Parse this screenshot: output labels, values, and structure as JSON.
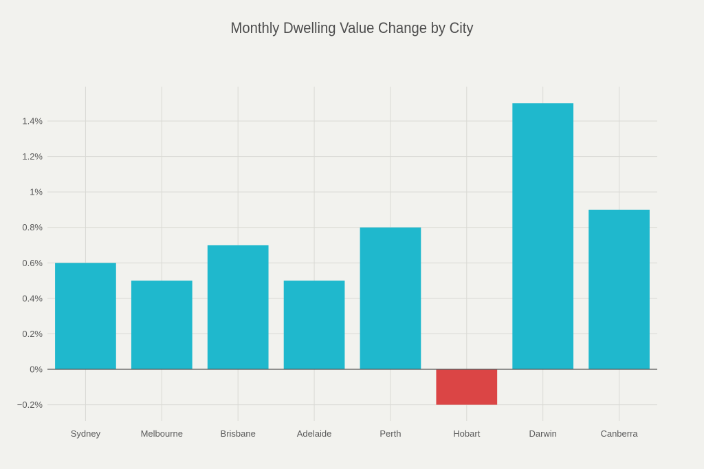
{
  "chart_data": {
    "type": "bar",
    "title": "Monthly Dwelling Value Change by City",
    "xlabel": "",
    "ylabel": "",
    "categories": [
      "Sydney",
      "Melbourne",
      "Brisbane",
      "Adelaide",
      "Perth",
      "Hobart",
      "Darwin",
      "Canberra"
    ],
    "values": [
      0.6,
      0.5,
      0.7,
      0.5,
      0.8,
      -0.2,
      1.5,
      0.9
    ],
    "value_unit": "%",
    "ylim": [
      -0.3,
      1.6
    ],
    "yticks": [
      -0.2,
      0,
      0.2,
      0.4,
      0.6,
      0.8,
      1,
      1.2,
      1.4
    ],
    "ytick_labels": [
      "−0.2%",
      "0%",
      "0.2%",
      "0.4%",
      "0.6%",
      "0.8%",
      "1%",
      "1.2%",
      "1.4%"
    ],
    "grid": true,
    "legend": "none",
    "colors": {
      "positive": "#1fb8cd",
      "negative": "#db4545",
      "background": "#f2f2ee",
      "grid": "#d9d9d4",
      "zero_line": "#555555"
    }
  }
}
